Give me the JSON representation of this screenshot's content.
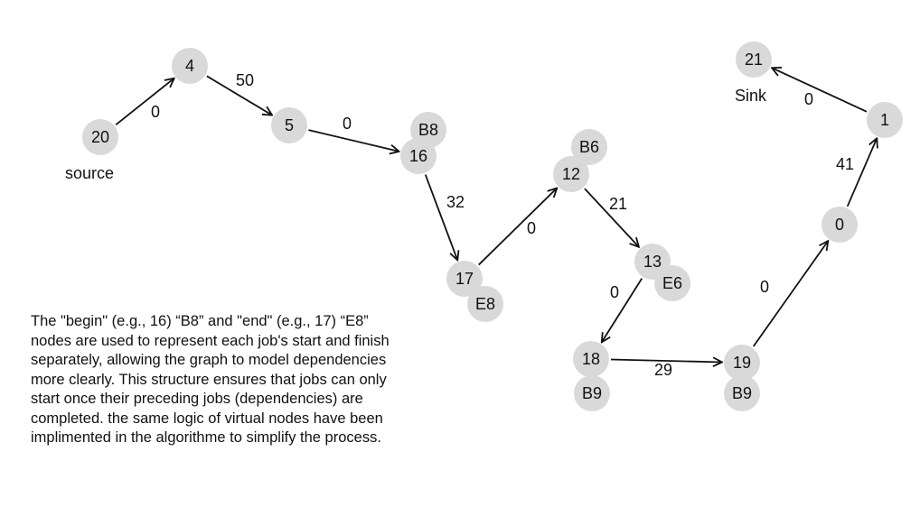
{
  "graph": {
    "nodes": [
      {
        "id": "20",
        "label": "20"
      },
      {
        "id": "4",
        "label": "4"
      },
      {
        "id": "5",
        "label": "5"
      },
      {
        "id": "B8",
        "label": "B8"
      },
      {
        "id": "16",
        "label": "16"
      },
      {
        "id": "17",
        "label": "17"
      },
      {
        "id": "E8",
        "label": "E8"
      },
      {
        "id": "B6",
        "label": "B6"
      },
      {
        "id": "12",
        "label": "12"
      },
      {
        "id": "13",
        "label": "13"
      },
      {
        "id": "E6",
        "label": "E6"
      },
      {
        "id": "18",
        "label": "18"
      },
      {
        "id": "B9a",
        "label": "B9"
      },
      {
        "id": "19",
        "label": "19"
      },
      {
        "id": "B9b",
        "label": "B9"
      },
      {
        "id": "0",
        "label": "0"
      },
      {
        "id": "1",
        "label": "1"
      },
      {
        "id": "21",
        "label": "21"
      }
    ],
    "edges": [
      {
        "from": "20",
        "to": "4",
        "weight": "0"
      },
      {
        "from": "4",
        "to": "5",
        "weight": "50"
      },
      {
        "from": "5",
        "to": "16",
        "weight": "0"
      },
      {
        "from": "16",
        "to": "17",
        "weight": "32"
      },
      {
        "from": "17",
        "to": "12",
        "weight": "0"
      },
      {
        "from": "12",
        "to": "13",
        "weight": "21"
      },
      {
        "from": "13",
        "to": "18",
        "weight": "0"
      },
      {
        "from": "18",
        "to": "19",
        "weight": "29"
      },
      {
        "from": "19",
        "to": "0",
        "weight": "0"
      },
      {
        "from": "0",
        "to": "1",
        "weight": "41"
      },
      {
        "from": "1",
        "to": "21",
        "weight": "0"
      }
    ]
  },
  "captions": {
    "source": "source",
    "sink": "Sink"
  },
  "description": "The \"begin\" (e.g., 16) “B8” and \"end\" (e.g., 17) “E8” nodes are used to represent each job's start and finish separately, allowing the graph to model dependencies more clearly. This structure ensures that jobs can only start once their preceding jobs (dependencies) are completed. the same logic of virtual nodes have been implimented in the algorithme to simplify the process.",
  "colors": {
    "node_fill": "#d9d9d9",
    "edge": "#111111",
    "text": "#111111"
  }
}
